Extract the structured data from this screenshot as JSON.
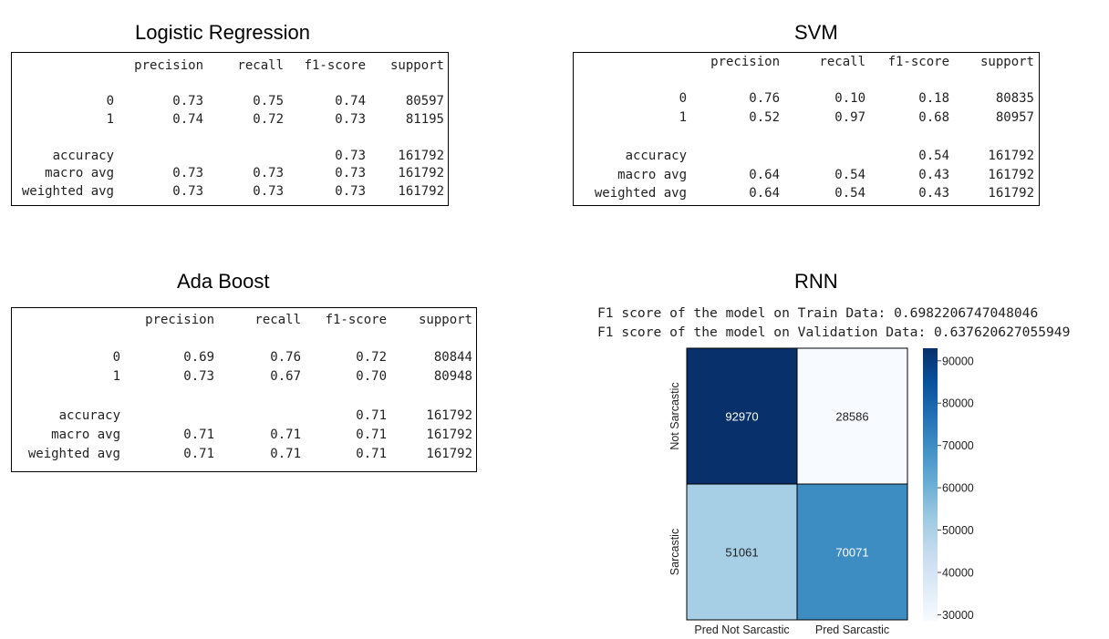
{
  "chart_data": [
    {
      "type": "table",
      "title": "Logistic Regression",
      "columns": [
        "precision",
        "recall",
        "f1-score",
        "support"
      ],
      "rows": [
        {
          "label": "0",
          "values": [
            "0.73",
            "0.75",
            "0.74",
            "80597"
          ]
        },
        {
          "label": "1",
          "values": [
            "0.74",
            "0.72",
            "0.73",
            "81195"
          ]
        },
        {
          "label": "accuracy",
          "values": [
            "",
            "",
            "0.73",
            "161792"
          ]
        },
        {
          "label": "macro avg",
          "values": [
            "0.73",
            "0.73",
            "0.73",
            "161792"
          ]
        },
        {
          "label": "weighted avg",
          "values": [
            "0.73",
            "0.73",
            "0.73",
            "161792"
          ]
        }
      ]
    },
    {
      "type": "table",
      "title": "SVM",
      "columns": [
        "precision",
        "recall",
        "f1-score",
        "support"
      ],
      "rows": [
        {
          "label": "0",
          "values": [
            "0.76",
            "0.10",
            "0.18",
            "80835"
          ]
        },
        {
          "label": "1",
          "values": [
            "0.52",
            "0.97",
            "0.68",
            "80957"
          ]
        },
        {
          "label": "accuracy",
          "values": [
            "",
            "",
            "0.54",
            "161792"
          ]
        },
        {
          "label": "macro avg",
          "values": [
            "0.64",
            "0.54",
            "0.43",
            "161792"
          ]
        },
        {
          "label": "weighted avg",
          "values": [
            "0.64",
            "0.54",
            "0.43",
            "161792"
          ]
        }
      ]
    },
    {
      "type": "table",
      "title": "Ada Boost",
      "columns": [
        "precision",
        "recall",
        "f1-score",
        "support"
      ],
      "rows": [
        {
          "label": "0",
          "values": [
            "0.69",
            "0.76",
            "0.72",
            "80844"
          ]
        },
        {
          "label": "1",
          "values": [
            "0.73",
            "0.67",
            "0.70",
            "80948"
          ]
        },
        {
          "label": "accuracy",
          "values": [
            "",
            "",
            "0.71",
            "161792"
          ]
        },
        {
          "label": "macro avg",
          "values": [
            "0.71",
            "0.71",
            "0.71",
            "161792"
          ]
        },
        {
          "label": "weighted avg",
          "values": [
            "0.71",
            "0.71",
            "0.71",
            "161792"
          ]
        }
      ]
    },
    {
      "type": "heatmap",
      "title": "RNN",
      "notes": [
        "F1 score of the model on Train Data: 0.6982206747048046",
        "F1 score of the model on Validation Data: 0.637620627055949"
      ],
      "x_categories": [
        "Pred Not Sarcastic",
        "Pred Sarcastic"
      ],
      "y_categories": [
        "Not Sarcastic",
        "Sarcastic"
      ],
      "matrix": [
        [
          92970,
          28586
        ],
        [
          51061,
          70071
        ]
      ],
      "colorbar": {
        "ticks": [
          30000,
          40000,
          50000,
          60000,
          70000,
          80000,
          90000
        ],
        "range": [
          28586,
          92970
        ],
        "colormap": "Blues"
      }
    }
  ]
}
